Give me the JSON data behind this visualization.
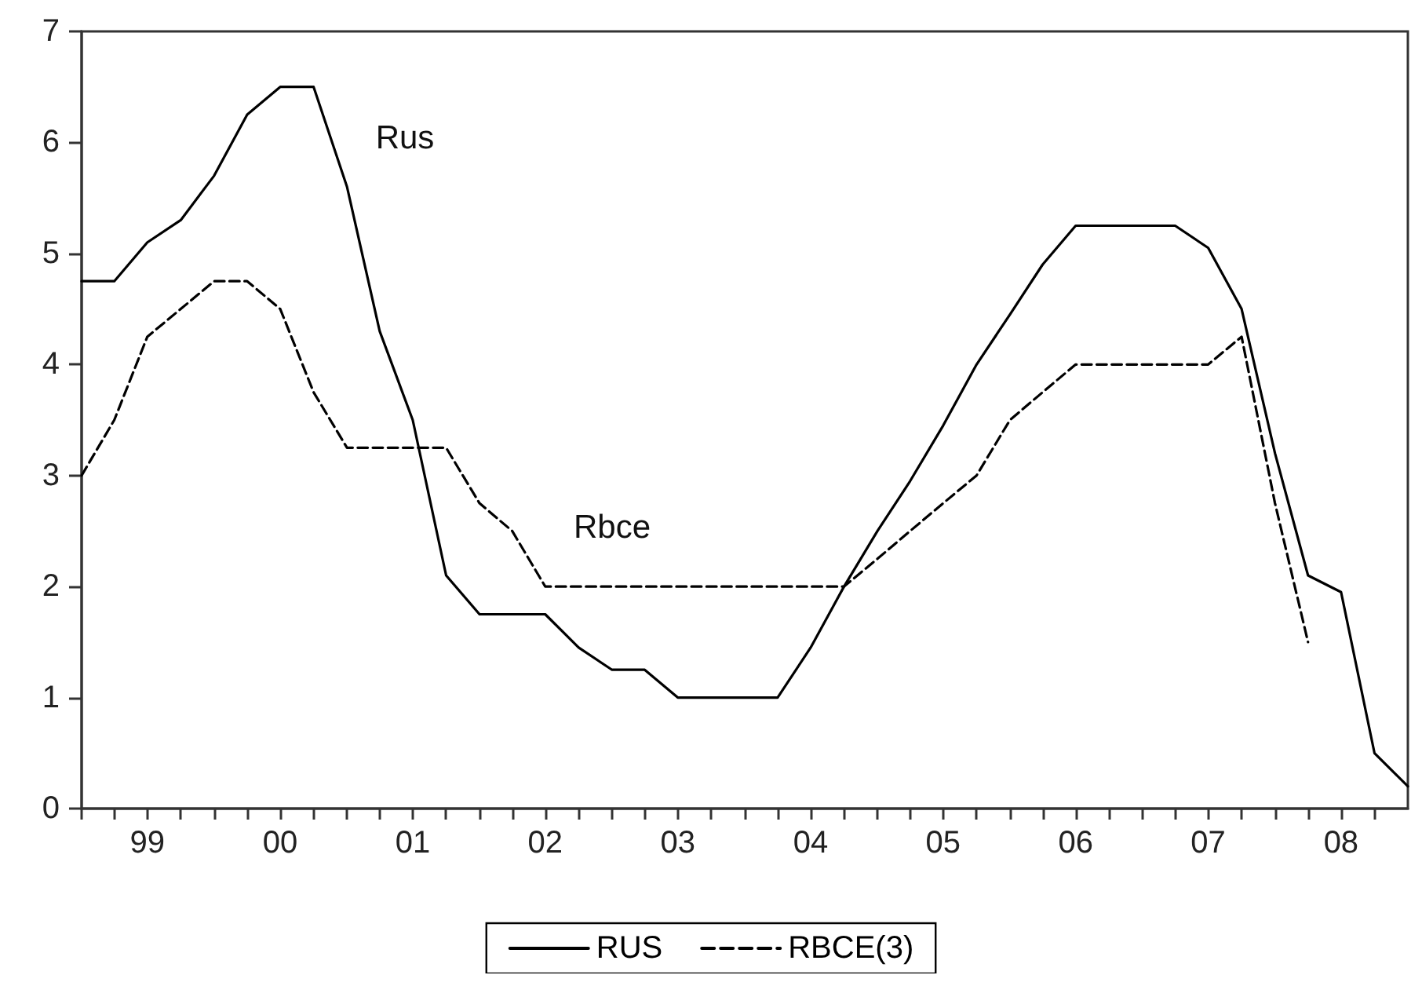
{
  "chart_data": {
    "type": "line",
    "x": [
      "1999-01",
      "1999-04",
      "1999-07",
      "1999-10",
      "2000-01",
      "2000-04",
      "2000-07",
      "2000-10",
      "2001-01",
      "2001-04",
      "2001-07",
      "2001-10",
      "2002-01",
      "2002-04",
      "2002-07",
      "2002-10",
      "2003-01",
      "2003-04",
      "2003-07",
      "2003-10",
      "2004-01",
      "2004-04",
      "2004-07",
      "2004-10",
      "2005-01",
      "2005-04",
      "2005-07",
      "2005-10",
      "2006-01",
      "2006-04",
      "2006-07",
      "2006-10",
      "2007-01",
      "2007-04",
      "2007-07",
      "2007-10",
      "2008-01",
      "2008-04",
      "2008-07",
      "2008-10",
      "2009-01"
    ],
    "series": [
      {
        "name": "RUS",
        "color": "#000000",
        "line_style": "solid",
        "values": [
          4.75,
          4.75,
          5.1,
          5.3,
          5.7,
          6.25,
          6.5,
          6.5,
          5.6,
          4.3,
          3.5,
          2.1,
          1.75,
          1.75,
          1.75,
          1.45,
          1.25,
          1.25,
          1.0,
          1.0,
          1.0,
          1.0,
          1.45,
          2.0,
          2.5,
          2.95,
          3.45,
          4.0,
          4.45,
          4.9,
          5.25,
          5.25,
          5.25,
          5.25,
          5.05,
          4.5,
          3.2,
          2.1,
          1.95,
          0.5,
          0.2
        ]
      },
      {
        "name": "RBCE(3)",
        "color": "#000000",
        "line_style": "dashed",
        "values": [
          3.0,
          3.5,
          4.25,
          4.5,
          4.75,
          4.75,
          4.5,
          3.75,
          3.25,
          3.25,
          3.25,
          3.25,
          2.75,
          2.5,
          2.0,
          2.0,
          2.0,
          2.0,
          2.0,
          2.0,
          2.0,
          2.0,
          2.0,
          2.0,
          2.25,
          2.5,
          2.75,
          3.0,
          3.5,
          3.75,
          4.0,
          4.0,
          4.0,
          4.0,
          4.0,
          4.25,
          2.75,
          1.5,
          null,
          null,
          null
        ]
      }
    ],
    "xlim": [
      "1999-01",
      "2009-01"
    ],
    "xticks": [
      {
        "value": "1999-01",
        "label": null
      },
      {
        "value": "1999-04",
        "label": null
      },
      {
        "value": "1999-07",
        "label": "99"
      },
      {
        "value": "1999-10",
        "label": null
      },
      {
        "value": "2000-01",
        "label": null
      },
      {
        "value": "2000-04",
        "label": null
      },
      {
        "value": "2000-07",
        "label": "00"
      },
      {
        "value": "2000-10",
        "label": null
      },
      {
        "value": "2001-01",
        "label": null
      },
      {
        "value": "2001-04",
        "label": null
      },
      {
        "value": "2001-07",
        "label": "01"
      },
      {
        "value": "2001-10",
        "label": null
      },
      {
        "value": "2002-01",
        "label": null
      },
      {
        "value": "2002-04",
        "label": null
      },
      {
        "value": "2002-07",
        "label": "02"
      },
      {
        "value": "2002-10",
        "label": null
      },
      {
        "value": "2003-01",
        "label": null
      },
      {
        "value": "2003-04",
        "label": null
      },
      {
        "value": "2003-07",
        "label": "03"
      },
      {
        "value": "2003-10",
        "label": null
      },
      {
        "value": "2004-01",
        "label": null
      },
      {
        "value": "2004-04",
        "label": null
      },
      {
        "value": "2004-07",
        "label": "04"
      },
      {
        "value": "2004-10",
        "label": null
      },
      {
        "value": "2005-01",
        "label": null
      },
      {
        "value": "2005-04",
        "label": null
      },
      {
        "value": "2005-07",
        "label": "05"
      },
      {
        "value": "2005-10",
        "label": null
      },
      {
        "value": "2006-01",
        "label": null
      },
      {
        "value": "2006-04",
        "label": null
      },
      {
        "value": "2006-07",
        "label": "06"
      },
      {
        "value": "2006-10",
        "label": null
      },
      {
        "value": "2007-01",
        "label": null
      },
      {
        "value": "2007-04",
        "label": null
      },
      {
        "value": "2007-07",
        "label": "07"
      },
      {
        "value": "2007-10",
        "label": null
      },
      {
        "value": "2008-01",
        "label": null
      },
      {
        "value": "2008-04",
        "label": null
      },
      {
        "value": "2008-07",
        "label": "08"
      },
      {
        "value": "2008-10",
        "label": null
      }
    ],
    "ylim": [
      0,
      7
    ],
    "yticks": [
      0,
      1,
      2,
      3,
      4,
      5,
      6,
      7
    ],
    "grid": false,
    "legend": "bottom",
    "marker": "none",
    "annotations": [
      "Rus",
      "Rbce"
    ]
  }
}
